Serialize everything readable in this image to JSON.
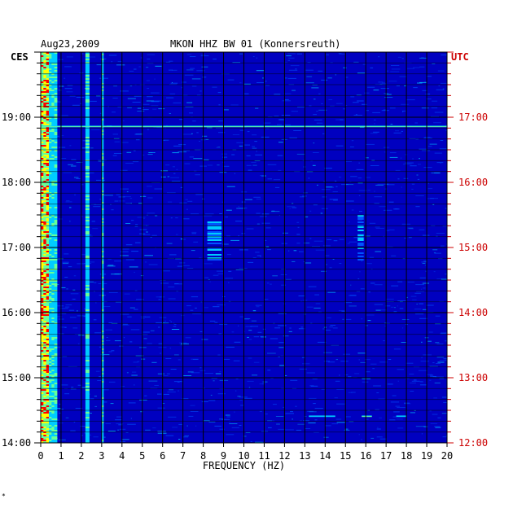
{
  "header": {
    "date": "Aug23,2009",
    "station": "MKON HHZ BW 01 (Konnersreuth)"
  },
  "left_tz": "CES",
  "right_tz": "UTC",
  "footer_mark": "*",
  "colors": {
    "background": "#0000c0",
    "grid": "#000000",
    "utc_text": "#cc0000",
    "local_text": "#000000"
  },
  "chart_data": {
    "type": "heatmap",
    "title": "MKON HHZ BW 01 (Konnersreuth)",
    "date": "Aug23,2009",
    "xlabel": "FREQUENCY (HZ)",
    "xlim": [
      0,
      20
    ],
    "x_ticks": [
      "0",
      "1",
      "2",
      "3",
      "4",
      "5",
      "6",
      "7",
      "8",
      "9",
      "10",
      "11",
      "12",
      "13",
      "14",
      "15",
      "16",
      "17",
      "18",
      "19",
      "20"
    ],
    "y_axis_left": {
      "name": "CES",
      "range_hours": [
        14,
        20
      ],
      "tick_labels": [
        "19:00",
        "18:00",
        "17:00",
        "16:00",
        "15:00",
        "14:00"
      ]
    },
    "y_axis_right": {
      "name": "UTC",
      "range_hours": [
        12,
        18
      ],
      "tick_labels": [
        "17:00",
        "16:00",
        "15:00",
        "14:00",
        "13:00",
        "12:00"
      ]
    },
    "grid_minor_minutes": 10,
    "colormap": [
      "#0000c0",
      "#0055ff",
      "#00ccff",
      "#66ff99",
      "#ffff00",
      "#ff0000"
    ],
    "features": [
      {
        "freq": [
          0,
          0.8
        ],
        "time_hours": [
          14,
          20
        ],
        "intensity": "high"
      },
      {
        "freq": [
          2.2,
          2.4
        ],
        "time_hours": [
          14,
          20
        ],
        "intensity": "medium"
      },
      {
        "freq": [
          3.0,
          3.1
        ],
        "time_hours": [
          14,
          20
        ],
        "intensity": "medium"
      },
      {
        "freq": [
          0,
          20
        ],
        "time_hours": [
          18.85,
          18.87
        ],
        "intensity": "medium"
      },
      {
        "freq": [
          13.2,
          14.5
        ],
        "time_hours": [
          14.4,
          14.42
        ],
        "intensity": "medium"
      },
      {
        "freq": [
          15.8,
          16.3
        ],
        "time_hours": [
          14.4,
          14.42
        ],
        "intensity": "medium"
      },
      {
        "freq": [
          17.5,
          18.0
        ],
        "time_hours": [
          14.4,
          14.42
        ],
        "intensity": "medium"
      },
      {
        "freq": [
          8.2,
          8.9
        ],
        "time_hours": [
          16.8,
          17.4
        ],
        "intensity": "low"
      },
      {
        "freq": [
          15.6,
          15.9
        ],
        "time_hours": [
          16.8,
          17.5
        ],
        "intensity": "low"
      }
    ]
  }
}
